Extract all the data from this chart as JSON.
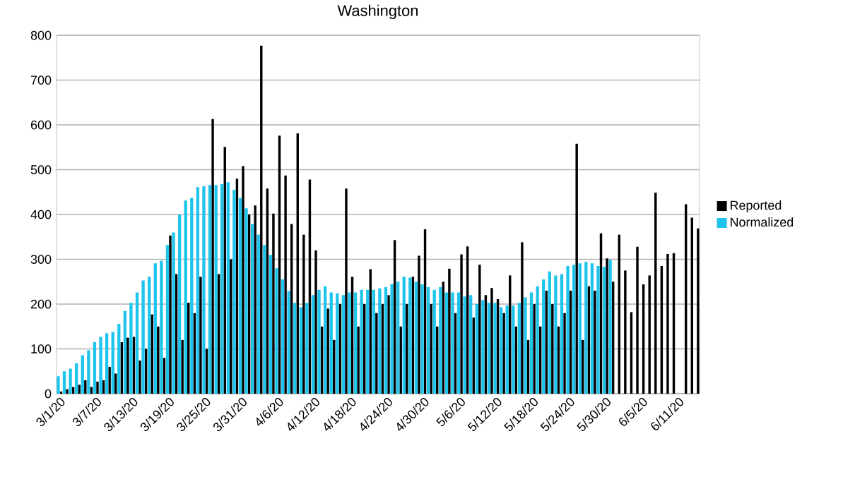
{
  "chart_data": {
    "type": "bar",
    "title": "Washington",
    "categories": [
      "3/1/20",
      null,
      null,
      null,
      null,
      null,
      "3/7/20",
      null,
      null,
      null,
      null,
      null,
      "3/13/20",
      null,
      null,
      null,
      null,
      null,
      "3/19/20",
      null,
      null,
      null,
      null,
      null,
      "3/25/20",
      null,
      null,
      null,
      null,
      null,
      "3/31/20",
      null,
      null,
      null,
      null,
      null,
      "4/6/20",
      null,
      null,
      null,
      null,
      null,
      "4/12/20",
      null,
      null,
      null,
      null,
      null,
      "4/18/20",
      null,
      null,
      null,
      null,
      null,
      "4/24/20",
      null,
      null,
      null,
      null,
      null,
      "4/30/20",
      null,
      null,
      null,
      null,
      null,
      "5/6/20",
      null,
      null,
      null,
      null,
      null,
      "5/12/20",
      null,
      null,
      null,
      null,
      null,
      "5/18/20",
      null,
      null,
      null,
      null,
      null,
      "5/24/20",
      null,
      null,
      null,
      null,
      null,
      "5/30/20",
      null,
      null,
      null,
      null,
      null,
      "6/5/20",
      null,
      null,
      null,
      null,
      null,
      "6/11/20",
      null,
      null,
      null
    ],
    "series": [
      {
        "name": "Reported",
        "color": "#000000",
        "values": [
          5,
          10,
          15,
          20,
          30,
          15,
          27,
          30,
          60,
          45,
          115,
          125,
          127,
          74,
          100,
          177,
          150,
          80,
          353,
          267,
          120,
          203,
          180,
          261,
          100,
          613,
          267,
          551,
          300,
          480,
          508,
          400,
          420,
          777,
          458,
          402,
          576,
          487,
          379,
          581,
          355,
          478,
          320,
          150,
          190,
          120,
          200,
          458,
          261,
          150,
          200,
          278,
          180,
          200,
          220,
          343,
          150,
          200,
          261,
          308,
          367,
          200,
          150,
          250,
          279,
          180,
          311,
          329,
          170,
          288,
          220,
          236,
          211,
          180,
          264,
          150,
          338,
          120,
          200,
          150,
          230,
          200,
          150,
          180,
          230,
          558,
          120,
          240,
          230,
          358,
          302,
          250,
          355,
          275,
          182,
          328,
          244,
          264,
          449,
          285,
          312,
          314,
          0,
          423,
          393,
          369
        ]
      },
      {
        "name": "Normalized",
        "color": "#1ec4ec",
        "values": [
          39,
          50,
          56,
          68,
          86,
          97,
          115,
          127,
          135,
          138,
          156,
          185,
          203,
          226,
          253,
          261,
          291,
          297,
          332,
          360,
          400,
          431,
          437,
          461,
          463,
          466,
          466,
          468,
          472,
          455,
          437,
          414,
          379,
          355,
          332,
          310,
          280,
          255,
          229,
          203,
          193,
          203,
          220,
          232,
          240,
          226,
          224,
          220,
          226,
          226,
          232,
          232,
          232,
          235,
          238,
          245,
          250,
          261,
          259,
          250,
          244,
          238,
          232,
          238,
          226,
          226,
          226,
          217,
          220,
          200,
          209,
          203,
          203,
          193,
          197,
          197,
          203,
          215,
          226,
          240,
          255,
          273,
          264,
          267,
          285,
          288,
          291,
          294,
          291,
          285,
          283,
          299,
          null,
          null,
          null,
          null,
          null,
          null,
          null,
          null,
          null,
          null,
          null,
          null,
          null,
          null
        ]
      }
    ],
    "ylim": [
      0,
      800
    ],
    "yticks": [
      0,
      100,
      200,
      300,
      400,
      500,
      600,
      700,
      800
    ],
    "grid": "y",
    "legend": "right"
  }
}
